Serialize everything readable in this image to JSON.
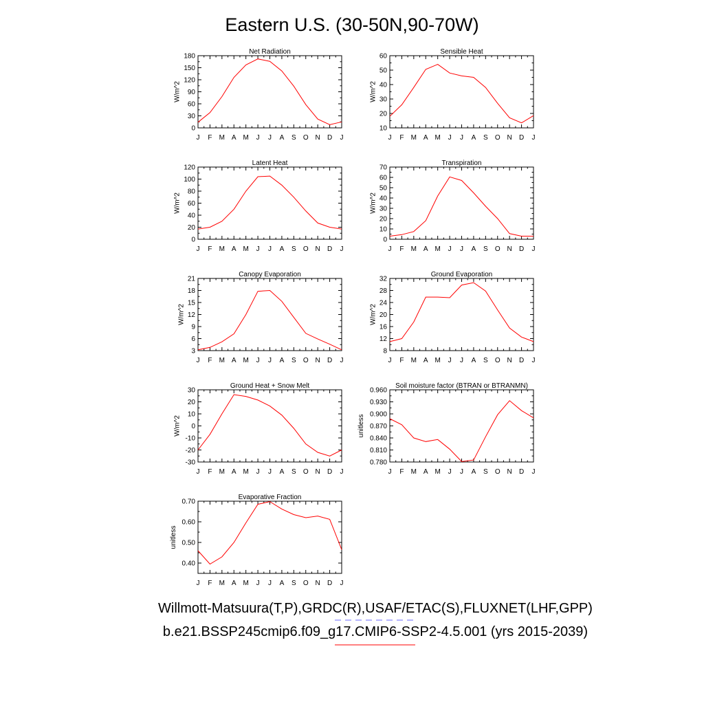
{
  "title": "Eastern U.S. (30-50N,90-70W)",
  "months": [
    "J",
    "F",
    "M",
    "A",
    "M",
    "J",
    "J",
    "A",
    "S",
    "O",
    "N",
    "D",
    "J"
  ],
  "line_color": "#ff0000",
  "chart_data": [
    {
      "type": "line",
      "title": "Net Radiation",
      "ylabel": "W/m^2",
      "ylim": [
        0,
        180
      ],
      "yticks": [
        "0",
        "30",
        "60",
        "90",
        "120",
        "150",
        "180"
      ],
      "categories": [
        "J",
        "F",
        "M",
        "A",
        "M",
        "J",
        "J",
        "A",
        "S",
        "O",
        "N",
        "D",
        "J"
      ],
      "values": [
        14,
        38,
        78,
        126,
        157,
        172,
        166,
        142,
        104,
        58,
        22,
        8,
        15
      ]
    },
    {
      "type": "line",
      "title": "Sensible Heat",
      "ylabel": "W/m^2",
      "ylim": [
        10,
        60
      ],
      "yticks": [
        "10",
        "20",
        "30",
        "40",
        "50",
        "60"
      ],
      "categories": [
        "J",
        "F",
        "M",
        "A",
        "M",
        "J",
        "J",
        "A",
        "S",
        "O",
        "N",
        "D",
        "J"
      ],
      "values": [
        18,
        26,
        38,
        50.5,
        54,
        48,
        46,
        45,
        38,
        27,
        17,
        13.5,
        18.5
      ]
    },
    {
      "type": "line",
      "title": "Latent Heat",
      "ylabel": "W/m^2",
      "ylim": [
        0,
        120
      ],
      "yticks": [
        "0",
        "20",
        "40",
        "60",
        "80",
        "100",
        "120"
      ],
      "categories": [
        "J",
        "F",
        "M",
        "A",
        "M",
        "J",
        "J",
        "A",
        "S",
        "O",
        "N",
        "D",
        "J"
      ],
      "values": [
        17,
        20,
        30,
        50,
        80,
        104,
        105,
        90,
        70,
        47,
        27,
        20,
        17
      ]
    },
    {
      "type": "line",
      "title": "Transpiration",
      "ylabel": "W/m^2",
      "ylim": [
        0,
        70
      ],
      "yticks": [
        "0",
        "10",
        "20",
        "30",
        "40",
        "50",
        "60",
        "70"
      ],
      "categories": [
        "J",
        "F",
        "M",
        "A",
        "M",
        "J",
        "J",
        "A",
        "S",
        "O",
        "N",
        "D",
        "J"
      ],
      "values": [
        3,
        4.5,
        7.5,
        18,
        42,
        60.5,
        57,
        45,
        32,
        20,
        5.5,
        3,
        3
      ]
    },
    {
      "type": "line",
      "title": "Canopy Evaporation",
      "ylabel": "W/m^2",
      "ylim": [
        3,
        21
      ],
      "yticks": [
        "3",
        "6",
        "9",
        "12",
        "15",
        "18",
        "21"
      ],
      "categories": [
        "J",
        "F",
        "M",
        "A",
        "M",
        "J",
        "J",
        "A",
        "S",
        "O",
        "N",
        "D",
        "J"
      ],
      "values": [
        3.2,
        3.8,
        5.2,
        7.2,
        12,
        17.8,
        18,
        15.3,
        11.3,
        7.3,
        5.9,
        4.6,
        3.2
      ]
    },
    {
      "type": "line",
      "title": "Ground Evaporation",
      "ylabel": "W/m^2",
      "ylim": [
        8,
        32
      ],
      "yticks": [
        "8",
        "12",
        "16",
        "20",
        "24",
        "28",
        "32"
      ],
      "categories": [
        "J",
        "F",
        "M",
        "A",
        "M",
        "J",
        "J",
        "A",
        "S",
        "O",
        "N",
        "D",
        "J"
      ],
      "values": [
        11,
        12,
        17.5,
        25.8,
        25.8,
        25.6,
        29.8,
        30.6,
        27.8,
        21.5,
        15.5,
        12.5,
        11
      ]
    },
    {
      "type": "line",
      "title": "Ground Heat + Snow Melt",
      "ylabel": "W/m^2",
      "ylim": [
        -30,
        30
      ],
      "yticks": [
        "-30",
        "-20",
        "-10",
        "0",
        "10",
        "20",
        "30"
      ],
      "categories": [
        "J",
        "F",
        "M",
        "A",
        "M",
        "J",
        "J",
        "A",
        "S",
        "O",
        "N",
        "D",
        "J"
      ],
      "values": [
        -20,
        -7,
        10,
        26,
        24.5,
        21.5,
        16.5,
        9,
        -2,
        -15,
        -22,
        -25,
        -20
      ]
    },
    {
      "type": "line",
      "title": "Soil moisture factor (BTRAN or BTRANMN)",
      "ylabel": "unitless",
      "ylim": [
        0.78,
        0.96
      ],
      "yticks": [
        "0.780",
        "0.810",
        "0.840",
        "0.870",
        "0.900",
        "0.930",
        "0.960"
      ],
      "categories": [
        "J",
        "F",
        "M",
        "A",
        "M",
        "J",
        "J",
        "A",
        "S",
        "O",
        "N",
        "D",
        "J"
      ],
      "values": [
        0.888,
        0.873,
        0.84,
        0.831,
        0.836,
        0.812,
        0.781,
        0.785,
        0.843,
        0.898,
        0.933,
        0.908,
        0.89
      ]
    },
    {
      "type": "line",
      "title": "Evaporative Fraction",
      "ylabel": "unitless",
      "ylim": [
        0.35,
        0.7
      ],
      "yticks": [
        "0.40",
        "0.50",
        "0.60",
        "0.70"
      ],
      "categories": [
        "J",
        "F",
        "M",
        "A",
        "M",
        "J",
        "J",
        "A",
        "S",
        "O",
        "N",
        "D",
        "J"
      ],
      "values": [
        0.46,
        0.395,
        0.43,
        0.5,
        0.595,
        0.685,
        0.698,
        0.662,
        0.635,
        0.62,
        0.628,
        0.612,
        0.465
      ]
    }
  ],
  "footer": {
    "line1": "Willmott-Matsuura(T,P),GRDC(R),USAF/ETAC(S),FLUXNET(LHF,GPP)",
    "line2": "b.e21.BSSP245cmip6.f09_g17.CMIP6-SSP2-4.5.001 (yrs 2015-2039)",
    "obs_line_color": "#6a6aff",
    "model_line_color": "#ff0000"
  }
}
